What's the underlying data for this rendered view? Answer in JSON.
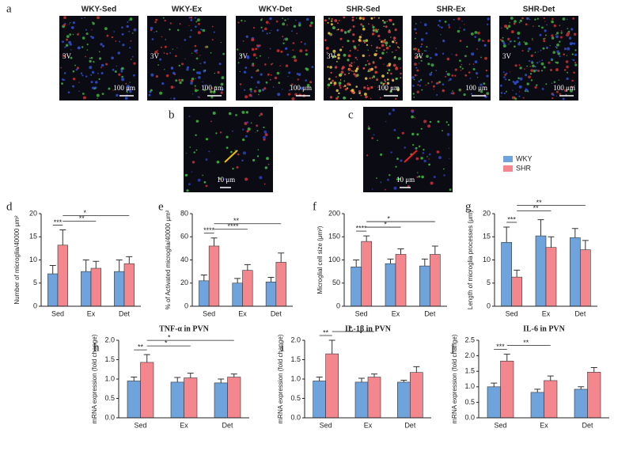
{
  "panel_a": {
    "letter": "a",
    "images": [
      {
        "label": "WKY-Sed",
        "region": "3V",
        "scale": "100 μm"
      },
      {
        "label": "WKY-Ex",
        "region": "3V",
        "scale": "100 μm"
      },
      {
        "label": "WKY-Det",
        "region": "3V",
        "scale": "100 μm"
      },
      {
        "label": "SHR-Sed",
        "region": "3V",
        "scale": "100 μm"
      },
      {
        "label": "SHR-Ex",
        "region": "3V",
        "scale": "100 μm"
      },
      {
        "label": "SHR-Det",
        "region": "3V",
        "scale": "100 μm"
      }
    ]
  },
  "panel_b": {
    "letter": "b",
    "scale": "10 μm"
  },
  "panel_c": {
    "letter": "c",
    "scale": "10 μm"
  },
  "chart_data": [
    {
      "type": "bar",
      "letter": "d",
      "ylabel": "Number of microglia/40000 μm²",
      "categories": [
        "Sed",
        "Ex",
        "Det"
      ],
      "series": [
        {
          "name": "WKY",
          "color": "#6fa3dc",
          "values": [
            7.0,
            7.5,
            7.5
          ],
          "errors": [
            1.8,
            2.5,
            2.5
          ]
        },
        {
          "name": "SHR",
          "color": "#f4878e",
          "values": [
            13.2,
            8.2,
            9.2
          ],
          "errors": [
            3.3,
            1.5,
            1.5
          ]
        }
      ],
      "ylim": [
        0,
        20
      ],
      "yticks": [
        0,
        5,
        10,
        15,
        20
      ],
      "brackets": [
        {
          "text": "***",
          "between": [
            [
              0,
              0
            ],
            [
              0,
              1
            ]
          ]
        },
        {
          "text": "**",
          "between": [
            [
              0,
              1
            ],
            [
              1,
              1
            ]
          ]
        },
        {
          "text": "*",
          "between": [
            [
              0,
              1
            ],
            [
              2,
              1
            ]
          ]
        }
      ]
    },
    {
      "type": "bar",
      "letter": "e",
      "ylabel": "% of Activated microglia/40000 μm²",
      "categories": [
        "Sed",
        "Ex",
        "Det"
      ],
      "series": [
        {
          "color": "#6fa3dc",
          "values": [
            22,
            20,
            21
          ],
          "errors": [
            5,
            4,
            4
          ]
        },
        {
          "color": "#f4878e",
          "values": [
            52,
            31,
            38
          ],
          "errors": [
            7,
            5,
            8
          ]
        }
      ],
      "ylim": [
        0,
        80
      ],
      "yticks": [
        0,
        20,
        40,
        60,
        80
      ],
      "brackets": [
        {
          "text": "****",
          "between": [
            [
              0,
              0
            ],
            [
              0,
              1
            ]
          ]
        },
        {
          "text": "****",
          "between": [
            [
              0,
              1
            ],
            [
              1,
              1
            ]
          ]
        },
        {
          "text": "**",
          "between": [
            [
              0,
              1
            ],
            [
              2,
              1
            ]
          ]
        }
      ]
    },
    {
      "type": "bar",
      "letter": "f",
      "ylabel": "Microglial cell size (μm²)",
      "categories": [
        "Sed",
        "Ex",
        "Det"
      ],
      "series": [
        {
          "color": "#6fa3dc",
          "values": [
            85,
            92,
            87
          ],
          "errors": [
            15,
            10,
            15
          ]
        },
        {
          "color": "#f4878e",
          "values": [
            140,
            112,
            112
          ],
          "errors": [
            12,
            12,
            18
          ]
        }
      ],
      "ylim": [
        0,
        200
      ],
      "yticks": [
        0,
        50,
        100,
        150,
        200
      ],
      "brackets": [
        {
          "text": "****",
          "between": [
            [
              0,
              0
            ],
            [
              0,
              1
            ]
          ]
        },
        {
          "text": "*",
          "between": [
            [
              0,
              1
            ],
            [
              1,
              1
            ]
          ]
        },
        {
          "text": "*",
          "between": [
            [
              0,
              1
            ],
            [
              2,
              1
            ]
          ]
        }
      ]
    },
    {
      "type": "bar",
      "letter": "g",
      "ylabel": "Length of microglia processes (μm)",
      "categories": [
        "Sed",
        "Ex",
        "Det"
      ],
      "series": [
        {
          "color": "#6fa3dc",
          "values": [
            13.8,
            15.2,
            14.8
          ],
          "errors": [
            3.3,
            3.5,
            2
          ]
        },
        {
          "color": "#f4878e",
          "values": [
            6.3,
            12.7,
            12.2
          ],
          "errors": [
            1.5,
            2.3,
            2
          ]
        }
      ],
      "ylim": [
        0,
        20
      ],
      "yticks": [
        0,
        5,
        10,
        15,
        20
      ],
      "brackets": [
        {
          "text": "***",
          "between": [
            [
              0,
              0
            ],
            [
              0,
              1
            ]
          ]
        },
        {
          "text": "**",
          "between": [
            [
              0,
              1
            ],
            [
              1,
              1
            ]
          ]
        },
        {
          "text": "**",
          "between": [
            [
              0,
              1
            ],
            [
              2,
              1
            ]
          ]
        }
      ]
    },
    {
      "type": "bar",
      "letter": "h",
      "title": "TNF-α in PVN",
      "ylabel": "mRNA expression (fold change)",
      "categories": [
        "Sed",
        "Ex",
        "Det"
      ],
      "series": [
        {
          "color": "#6fa3dc",
          "values": [
            0.95,
            0.92,
            0.9
          ],
          "errors": [
            0.1,
            0.12,
            0.1
          ]
        },
        {
          "color": "#f4878e",
          "values": [
            1.43,
            1.03,
            1.05
          ],
          "errors": [
            0.2,
            0.12,
            0.08
          ]
        }
      ],
      "ylim": [
        0,
        2
      ],
      "yticks": [
        {
          "value": 0,
          "label": "0.0"
        },
        0.5,
        {
          "value": 1,
          "label": "1.0"
        },
        1.5,
        {
          "value": 2,
          "label": "2.0"
        }
      ],
      "brackets": [
        {
          "text": "**",
          "between": [
            [
              0,
              0
            ],
            [
              0,
              1
            ]
          ]
        },
        {
          "text": "*",
          "between": [
            [
              0,
              1
            ],
            [
              1,
              1
            ]
          ]
        },
        {
          "text": "*",
          "between": [
            [
              0,
              1
            ],
            [
              2,
              1
            ]
          ]
        }
      ]
    },
    {
      "type": "bar",
      "letter": "i",
      "title": "IL-1β in PVN",
      "ylabel": "mRNA expression (fold change)",
      "categories": [
        "Sed",
        "Ex",
        "Det"
      ],
      "series": [
        {
          "color": "#6fa3dc",
          "values": [
            0.95,
            0.92,
            0.92
          ],
          "errors": [
            0.1,
            0.1,
            0.05
          ]
        },
        {
          "color": "#f4878e",
          "values": [
            1.65,
            1.05,
            1.17
          ],
          "errors": [
            0.35,
            0.08,
            0.15
          ]
        }
      ],
      "ylim": [
        0,
        2
      ],
      "yticks": [
        {
          "value": 0,
          "label": "0.0"
        },
        0.5,
        {
          "value": 1,
          "label": "1.0"
        },
        1.5,
        {
          "value": 2,
          "label": "2.0"
        }
      ],
      "brackets": [
        {
          "text": "**",
          "between": [
            [
              0,
              0
            ],
            [
              0,
              1
            ]
          ]
        },
        {
          "text": "*",
          "between": [
            [
              0,
              1
            ],
            [
              1,
              1
            ]
          ]
        }
      ]
    },
    {
      "type": "bar",
      "letter": "j",
      "title": "IL-6 in PVN",
      "ylabel": "mRNA expression (fold change)",
      "categories": [
        "Sed",
        "Ex",
        "Det"
      ],
      "series": [
        {
          "color": "#6fa3dc",
          "values": [
            1.0,
            0.82,
            0.92
          ],
          "errors": [
            0.12,
            0.1,
            0.08
          ]
        },
        {
          "color": "#f4878e",
          "values": [
            1.83,
            1.2,
            1.47
          ],
          "errors": [
            0.22,
            0.15,
            0.15
          ]
        }
      ],
      "ylim": [
        0,
        2.5
      ],
      "yticks": [
        {
          "value": 0,
          "label": "0.0"
        },
        0.5,
        {
          "value": 1,
          "label": "1.0"
        },
        1.5,
        {
          "value": 2,
          "label": "2.0"
        },
        2.5
      ],
      "brackets": [
        {
          "text": "***",
          "between": [
            [
              0,
              0
            ],
            [
              0,
              1
            ]
          ]
        },
        {
          "text": "**",
          "between": [
            [
              0,
              1
            ],
            [
              1,
              1
            ]
          ]
        }
      ]
    }
  ]
}
